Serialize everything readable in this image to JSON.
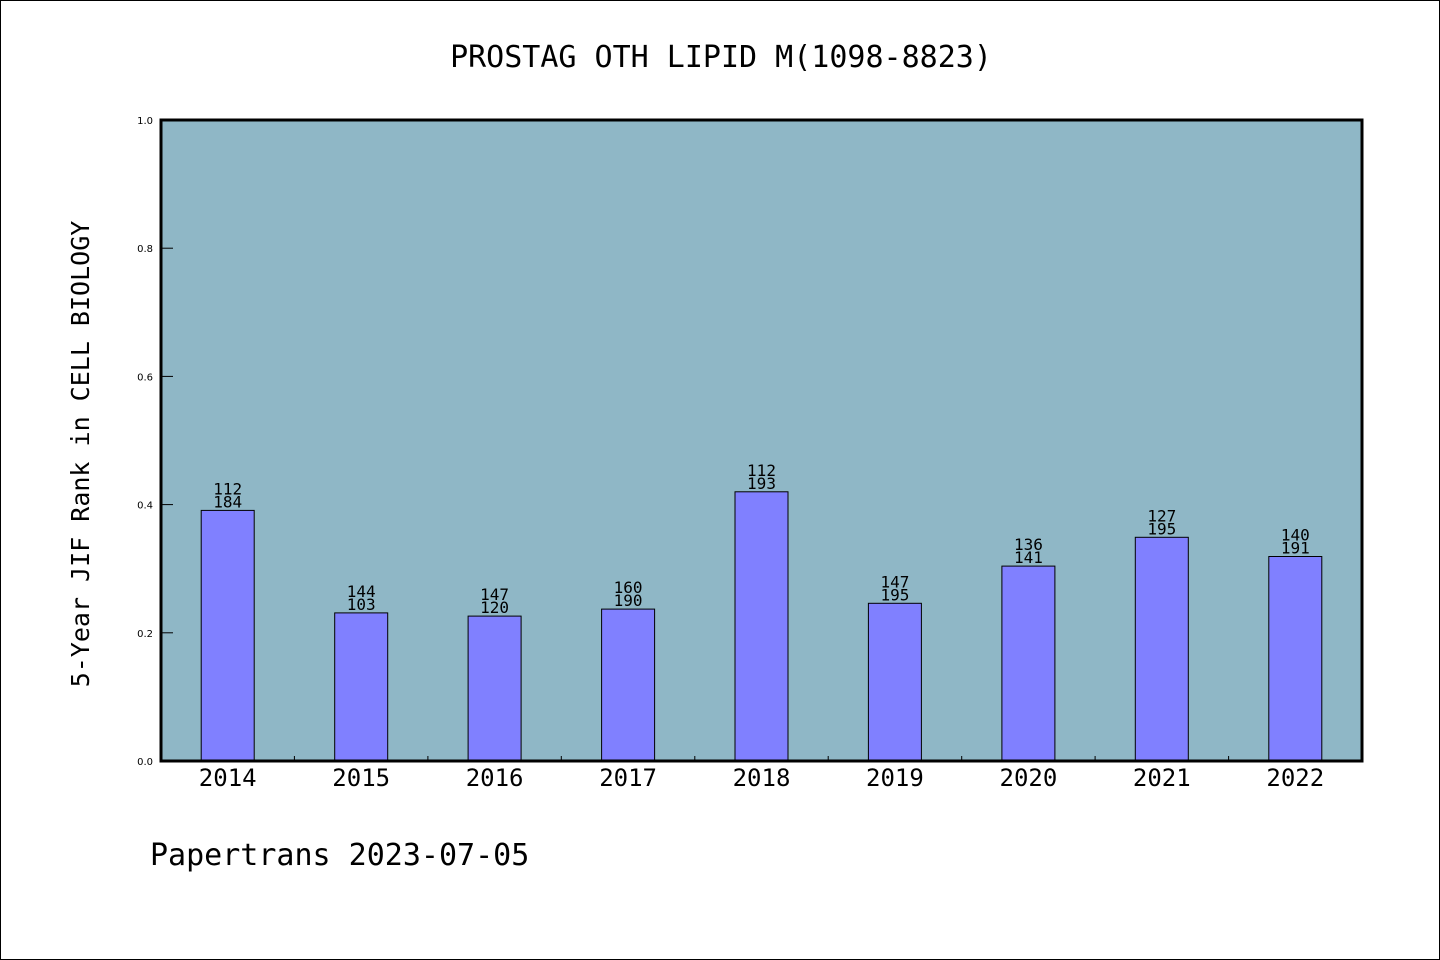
{
  "chart_data": {
    "type": "bar",
    "title": "PROSTAG OTH LIPID M(1098-8823)",
    "xlabel": "",
    "ylabel": "5-Year JIF Rank in CELL BIOLOGY",
    "ylim": [
      0,
      1.0
    ],
    "yticks": [
      "0.0",
      "0.2",
      "0.4",
      "0.6",
      "0.8",
      "1.0"
    ],
    "categories": [
      "2014",
      "2015",
      "2016",
      "2017",
      "2018",
      "2019",
      "2020",
      "2021",
      "2022"
    ],
    "values": [
      0.391,
      0.231,
      0.226,
      0.237,
      0.42,
      0.246,
      0.304,
      0.349,
      0.319
    ],
    "labels_top": [
      "112",
      "144",
      "147",
      "160",
      "112",
      "147",
      "136",
      "127",
      "140"
    ],
    "labels_bottom": [
      "184",
      "103",
      "120",
      "190",
      "193",
      "195",
      "141",
      "195",
      "191"
    ],
    "grid": false,
    "colors": {
      "plot_background": "#8fb7c6",
      "bar_fill": "#8080ff",
      "bar_edge": "#000000"
    }
  },
  "footer": "Papertrans 2023-07-05"
}
